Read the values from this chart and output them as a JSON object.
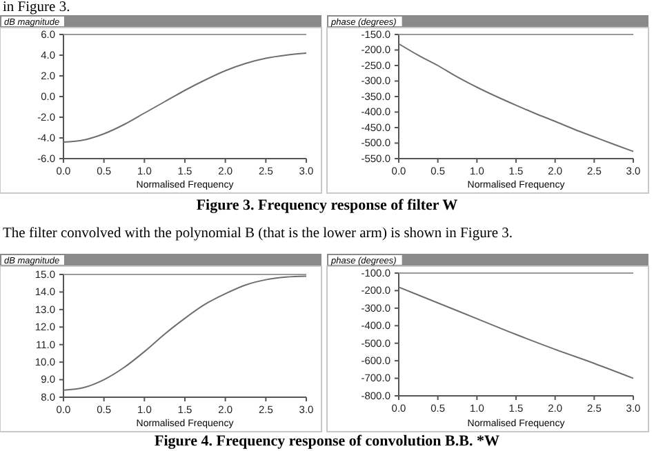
{
  "chart_data": [
    {
      "type": "line",
      "ylabel": "dB magnitude",
      "xlabel": "Normalised Frequency",
      "annotations": [
        "in Figure 3."
      ],
      "x": [
        0,
        0.25,
        0.5,
        0.75,
        1,
        1.25,
        1.5,
        1.75,
        2,
        2.25,
        2.5,
        2.75,
        3
      ],
      "series": [
        {
          "color": "#6e6e6e",
          "values": [
            -4.4,
            -4.2,
            -3.6,
            -2.7,
            -1.6,
            -0.5,
            0.6,
            1.6,
            2.5,
            3.2,
            3.7,
            4.0,
            4.2
          ]
        }
      ],
      "xlim": [
        0,
        3
      ],
      "xticks": [
        {
          "value": 0,
          "label": "0.0"
        },
        {
          "value": 0.5,
          "label": "0.5"
        },
        {
          "value": 1,
          "label": "1.0"
        },
        {
          "value": 1.5,
          "label": "1.5"
        },
        {
          "value": 2,
          "label": "2.0"
        },
        {
          "value": 2.5,
          "label": "2.5"
        },
        {
          "value": 3,
          "label": "3.0"
        }
      ],
      "ylim": [
        -6,
        6
      ],
      "yticks": [
        {
          "value": -6,
          "label": "-6.0"
        },
        {
          "value": -4,
          "label": "-4.0"
        },
        {
          "value": -2,
          "label": "-2.0"
        },
        {
          "value": 0,
          "label": "0.0"
        },
        {
          "value": 2,
          "label": "2.0"
        },
        {
          "value": 4,
          "label": "4.0"
        },
        {
          "value": 6,
          "label": "6.0"
        }
      ]
    },
    {
      "type": "line",
      "ylabel": "phase (degrees)",
      "xlabel": "Normalised Frequency",
      "annotations": [
        "Figure 3. Frequency response of filter W"
      ],
      "x": [
        0,
        0.25,
        0.5,
        0.75,
        1,
        1.25,
        1.5,
        1.75,
        2,
        2.25,
        2.5,
        2.75,
        3
      ],
      "series": [
        {
          "color": "#6e6e6e",
          "values": [
            -180,
            -217,
            -250,
            -287,
            -320,
            -350,
            -378,
            -405,
            -430,
            -456,
            -480,
            -504,
            -527
          ]
        }
      ],
      "xlim": [
        0,
        3
      ],
      "xticks": [
        {
          "value": 0,
          "label": "0.0"
        },
        {
          "value": 0.5,
          "label": "0.5"
        },
        {
          "value": 1,
          "label": "1.0"
        },
        {
          "value": 1.5,
          "label": "1.5"
        },
        {
          "value": 2,
          "label": "2.0"
        },
        {
          "value": 2.5,
          "label": "2.5"
        },
        {
          "value": 3,
          "label": "3.0"
        }
      ],
      "ylim": [
        -550,
        -150
      ],
      "yticks": [
        {
          "value": -550,
          "label": "-550.0"
        },
        {
          "value": -500,
          "label": "-500.0"
        },
        {
          "value": -450,
          "label": "-450.0"
        },
        {
          "value": -400,
          "label": "-400.0"
        },
        {
          "value": -350,
          "label": "-350.0"
        },
        {
          "value": -300,
          "label": "-300.0"
        },
        {
          "value": -250,
          "label": "-250.0"
        },
        {
          "value": -200,
          "label": "-200.0"
        },
        {
          "value": -150,
          "label": "-150.0"
        }
      ]
    },
    {
      "type": "line",
      "ylabel": "dB magnitude",
      "xlabel": "Normalised Frequency",
      "annotations": [
        "The filter convolved with the polynomial B (that is the lower arm)  is shown in Figure 3."
      ],
      "x": [
        0,
        0.25,
        0.5,
        0.75,
        1,
        1.25,
        1.5,
        1.75,
        2,
        2.25,
        2.5,
        2.75,
        3
      ],
      "series": [
        {
          "color": "#6e6e6e",
          "values": [
            8.4,
            8.55,
            9.0,
            9.7,
            10.6,
            11.6,
            12.5,
            13.3,
            13.9,
            14.4,
            14.7,
            14.85,
            14.9
          ]
        }
      ],
      "xlim": [
        0,
        3
      ],
      "xticks": [
        {
          "value": 0,
          "label": "0.0"
        },
        {
          "value": 0.5,
          "label": "0.5"
        },
        {
          "value": 1,
          "label": "1.0"
        },
        {
          "value": 1.5,
          "label": "1.5"
        },
        {
          "value": 2,
          "label": "2.0"
        },
        {
          "value": 2.5,
          "label": "2.5"
        },
        {
          "value": 3,
          "label": "3.0"
        }
      ],
      "ylim": [
        8,
        15
      ],
      "yticks": [
        {
          "value": 8,
          "label": "8.0"
        },
        {
          "value": 9,
          "label": "9.0"
        },
        {
          "value": 10,
          "label": "10.0"
        },
        {
          "value": 11,
          "label": "11.0"
        },
        {
          "value": 12,
          "label": "12.0"
        },
        {
          "value": 13,
          "label": "13.0"
        },
        {
          "value": 14,
          "label": "14.0"
        },
        {
          "value": 15,
          "label": "15.0"
        }
      ]
    },
    {
      "type": "line",
      "ylabel": "phase (degrees)",
      "xlabel": "Normalised Frequency",
      "annotations": [
        "Figure 4. Frequency response of convolution B.B. *W"
      ],
      "x": [
        0,
        0.5,
        1,
        1.5,
        2,
        2.5,
        3
      ],
      "series": [
        {
          "color": "#6e6e6e",
          "values": [
            -180,
            -270,
            -360,
            -450,
            -535,
            -615,
            -700
          ]
        }
      ],
      "xlim": [
        0,
        3
      ],
      "xticks": [
        {
          "value": 0,
          "label": "0.0"
        },
        {
          "value": 0.5,
          "label": "0.5"
        },
        {
          "value": 1,
          "label": "1.0"
        },
        {
          "value": 1.5,
          "label": "1.5"
        },
        {
          "value": 2,
          "label": "2.0"
        },
        {
          "value": 2.5,
          "label": "2.5"
        },
        {
          "value": 3,
          "label": "3.0"
        }
      ],
      "ylim": [
        -800,
        -100
      ],
      "yticks": [
        {
          "value": -800,
          "label": "-800.0"
        },
        {
          "value": -700,
          "label": "-700.0"
        },
        {
          "value": -600,
          "label": "-600.0"
        },
        {
          "value": -500,
          "label": "-500.0"
        },
        {
          "value": -400,
          "label": "-400.0"
        },
        {
          "value": -300,
          "label": "-300.0"
        },
        {
          "value": -200,
          "label": "-200.0"
        },
        {
          "value": -100,
          "label": "-100.0"
        }
      ]
    }
  ]
}
